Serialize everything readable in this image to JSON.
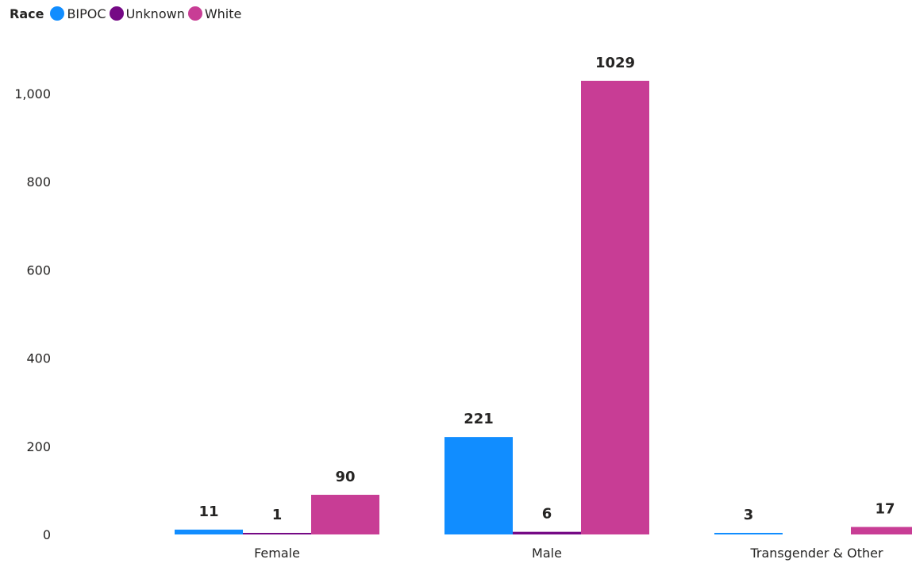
{
  "chart_data": {
    "type": "bar",
    "legend_title": "Race",
    "legend_position": "top-left",
    "categories": [
      "Female",
      "Male",
      "Transgender & Other"
    ],
    "series": [
      {
        "name": "BIPOC",
        "color": "#118DFF",
        "values": [
          11,
          221,
          3
        ]
      },
      {
        "name": "Unknown",
        "color": "#750985",
        "values": [
          1,
          6,
          null
        ]
      },
      {
        "name": "White",
        "color": "#C83D95",
        "values": [
          90,
          1029,
          17
        ]
      }
    ],
    "data_labels": [
      [
        "11",
        "221",
        "3"
      ],
      [
        "1",
        "6",
        ""
      ],
      [
        "90",
        "1029",
        "17"
      ]
    ],
    "yticks": [
      0,
      200,
      400,
      600,
      800,
      1000
    ],
    "ytick_labels": [
      "0",
      "200",
      "400",
      "600",
      "800",
      "1,000"
    ],
    "ylim": [
      0,
      1090
    ],
    "grid": false
  }
}
